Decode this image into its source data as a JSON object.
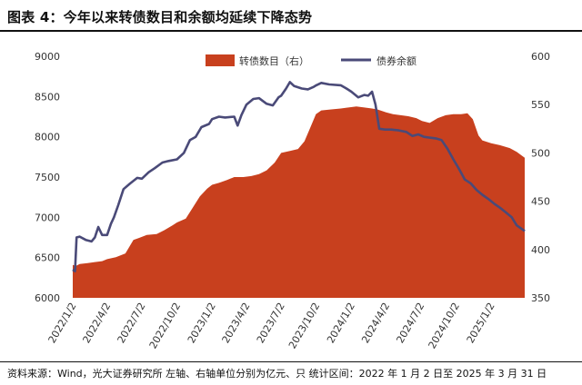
{
  "header": {
    "title": "图表 4：今年以来转债数目和余额均延续下降态势"
  },
  "footer": {
    "source": "资料来源：Wind，光大证券研究所 左轴、右轴单位分别为亿元、只 统计区间：2022 年 1 月 2 日至 2025 年 3 月 31 日"
  },
  "colors": {
    "count_fill": "#C8401E",
    "balance_line": "#4A4A78",
    "axis_text": "#333333"
  },
  "chart_data": {
    "type": "area",
    "title": "",
    "x_range": [
      "2022-01-02",
      "2025-03-31"
    ],
    "x_ticks": [
      "2022/1/2",
      "2022/4/2",
      "2022/7/2",
      "2022/10/2",
      "2023/1/2",
      "2023/4/2",
      "2023/7/2",
      "2023/10/2",
      "2024/1/2",
      "2024/4/2",
      "2024/7/2",
      "2024/10/2",
      "2025/1/2"
    ],
    "y_left": {
      "lim": [
        6000,
        9000
      ],
      "ticks": [
        "6000",
        "6500",
        "7000",
        "7500",
        "8000",
        "8500",
        "9000"
      ]
    },
    "y_right": {
      "lim": [
        350,
        600
      ],
      "ticks": [
        "350",
        "400",
        "450",
        "500",
        "550",
        "600"
      ]
    },
    "legend": {
      "position": "top-center"
    },
    "series": [
      {
        "name": "转债数目（右）",
        "kind": "area",
        "axis": "right",
        "points": [
          [
            "2022-01-02",
            384
          ],
          [
            "2022-01-10",
            383
          ],
          [
            "2022-01-20",
            385
          ],
          [
            "2022-02-10",
            386
          ],
          [
            "2022-03-01",
            387
          ],
          [
            "2022-03-20",
            388
          ],
          [
            "2022-04-02",
            390
          ],
          [
            "2022-04-25",
            392
          ],
          [
            "2022-05-20",
            396
          ],
          [
            "2022-06-10",
            410
          ],
          [
            "2022-06-25",
            412
          ],
          [
            "2022-07-15",
            415
          ],
          [
            "2022-08-10",
            416
          ],
          [
            "2022-08-30",
            420
          ],
          [
            "2022-09-20",
            425
          ],
          [
            "2022-10-02",
            428
          ],
          [
            "2022-10-25",
            432
          ],
          [
            "2022-11-15",
            445
          ],
          [
            "2022-12-01",
            455
          ],
          [
            "2022-12-20",
            463
          ],
          [
            "2023-01-02",
            467
          ],
          [
            "2023-01-20",
            469
          ],
          [
            "2023-02-10",
            472
          ],
          [
            "2023-03-01",
            475
          ],
          [
            "2023-03-25",
            475
          ],
          [
            "2023-04-15",
            476
          ],
          [
            "2023-05-05",
            478
          ],
          [
            "2023-05-25",
            482
          ],
          [
            "2023-06-15",
            490
          ],
          [
            "2023-07-02",
            500
          ],
          [
            "2023-07-25",
            502
          ],
          [
            "2023-08-15",
            504
          ],
          [
            "2023-09-01",
            512
          ],
          [
            "2023-09-15",
            525
          ],
          [
            "2023-10-01",
            540
          ],
          [
            "2023-10-15",
            544
          ],
          [
            "2023-11-10",
            545
          ],
          [
            "2023-12-05",
            546
          ],
          [
            "2023-12-25",
            547
          ],
          [
            "2024-01-15",
            548
          ],
          [
            "2024-02-05",
            547
          ],
          [
            "2024-02-25",
            546
          ],
          [
            "2024-03-10",
            545
          ],
          [
            "2024-04-02",
            542
          ],
          [
            "2024-04-20",
            540
          ],
          [
            "2024-05-10",
            539
          ],
          [
            "2024-05-30",
            538
          ],
          [
            "2024-06-20",
            536
          ],
          [
            "2024-07-05",
            533
          ],
          [
            "2024-07-25",
            531
          ],
          [
            "2024-08-15",
            536
          ],
          [
            "2024-09-05",
            539
          ],
          [
            "2024-09-25",
            540
          ],
          [
            "2024-10-15",
            540
          ],
          [
            "2024-11-01",
            541
          ],
          [
            "2024-11-15",
            535
          ],
          [
            "2024-11-30",
            518
          ],
          [
            "2024-12-10",
            513
          ],
          [
            "2025-01-02",
            510
          ],
          [
            "2025-01-25",
            508
          ],
          [
            "2025-02-20",
            505
          ],
          [
            "2025-03-10",
            501
          ],
          [
            "2025-03-31",
            495
          ]
        ]
      },
      {
        "name": "债券余额",
        "kind": "line",
        "axis": "left",
        "points": [
          [
            "2022-01-02",
            6350
          ],
          [
            "2022-01-08",
            6330
          ],
          [
            "2022-01-12",
            6750
          ],
          [
            "2022-01-20",
            6760
          ],
          [
            "2022-02-05",
            6720
          ],
          [
            "2022-02-20",
            6700
          ],
          [
            "2022-03-01",
            6750
          ],
          [
            "2022-03-10",
            6880
          ],
          [
            "2022-03-20",
            6780
          ],
          [
            "2022-04-02",
            6780
          ],
          [
            "2022-04-12",
            6920
          ],
          [
            "2022-04-20",
            7000
          ],
          [
            "2022-05-01",
            7150
          ],
          [
            "2022-05-15",
            7350
          ],
          [
            "2022-06-01",
            7420
          ],
          [
            "2022-06-20",
            7490
          ],
          [
            "2022-07-02",
            7480
          ],
          [
            "2022-07-20",
            7560
          ],
          [
            "2022-08-05",
            7610
          ],
          [
            "2022-08-25",
            7680
          ],
          [
            "2022-09-10",
            7700
          ],
          [
            "2022-10-02",
            7720
          ],
          [
            "2022-10-20",
            7800
          ],
          [
            "2022-11-05",
            7960
          ],
          [
            "2022-11-20",
            8000
          ],
          [
            "2022-12-05",
            8120
          ],
          [
            "2022-12-25",
            8160
          ],
          [
            "2023-01-02",
            8220
          ],
          [
            "2023-01-20",
            8250
          ],
          [
            "2023-02-05",
            8240
          ],
          [
            "2023-03-01",
            8250
          ],
          [
            "2023-03-10",
            8140
          ],
          [
            "2023-03-20",
            8270
          ],
          [
            "2023-04-02",
            8400
          ],
          [
            "2023-04-20",
            8470
          ],
          [
            "2023-05-05",
            8480
          ],
          [
            "2023-05-25",
            8410
          ],
          [
            "2023-06-10",
            8390
          ],
          [
            "2023-06-25",
            8490
          ],
          [
            "2023-07-02",
            8510
          ],
          [
            "2023-07-15",
            8600
          ],
          [
            "2023-07-25",
            8680
          ],
          [
            "2023-08-05",
            8630
          ],
          [
            "2023-08-25",
            8600
          ],
          [
            "2023-09-10",
            8590
          ],
          [
            "2023-09-25",
            8620
          ],
          [
            "2023-10-02",
            8640
          ],
          [
            "2023-10-15",
            8670
          ],
          [
            "2023-11-05",
            8650
          ],
          [
            "2023-12-05",
            8640
          ],
          [
            "2023-12-20",
            8600
          ],
          [
            "2024-01-02",
            8560
          ],
          [
            "2024-01-20",
            8490
          ],
          [
            "2024-02-05",
            8520
          ],
          [
            "2024-02-15",
            8510
          ],
          [
            "2024-02-25",
            8560
          ],
          [
            "2024-03-05",
            8400
          ],
          [
            "2024-03-15",
            8100
          ],
          [
            "2024-03-30",
            8090
          ],
          [
            "2024-04-15",
            8090
          ],
          [
            "2024-05-05",
            8080
          ],
          [
            "2024-05-25",
            8060
          ],
          [
            "2024-06-10",
            8010
          ],
          [
            "2024-06-25",
            8030
          ],
          [
            "2024-07-10",
            8000
          ],
          [
            "2024-07-25",
            7990
          ],
          [
            "2024-08-10",
            7980
          ],
          [
            "2024-08-25",
            7960
          ],
          [
            "2024-09-10",
            7850
          ],
          [
            "2024-09-25",
            7720
          ],
          [
            "2024-10-10",
            7600
          ],
          [
            "2024-10-25",
            7470
          ],
          [
            "2024-11-10",
            7420
          ],
          [
            "2024-11-25",
            7340
          ],
          [
            "2024-12-10",
            7280
          ],
          [
            "2024-12-25",
            7230
          ],
          [
            "2025-01-10",
            7170
          ],
          [
            "2025-01-25",
            7120
          ],
          [
            "2025-02-10",
            7060
          ],
          [
            "2025-02-25",
            7000
          ],
          [
            "2025-03-10",
            6900
          ],
          [
            "2025-03-31",
            6830
          ]
        ]
      }
    ]
  }
}
